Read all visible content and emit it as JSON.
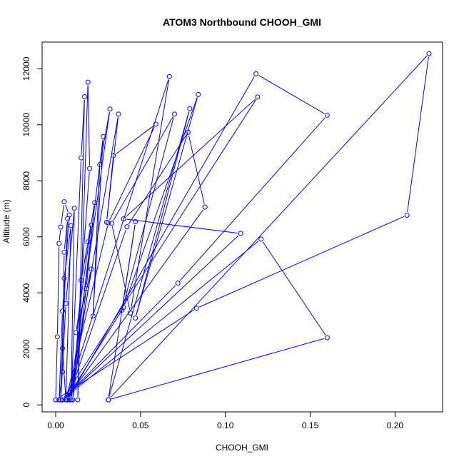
{
  "chart_data": {
    "type": "line",
    "title": "ATOM3 Northbound CHOOH_GMI",
    "xlabel": "CHOOH_GMI",
    "ylabel": "Altitude (m)",
    "xlim": [
      -0.008,
      0.228
    ],
    "ylim": [
      -250,
      12950
    ],
    "x_ticks": [
      0.0,
      0.05,
      0.1,
      0.15,
      0.2
    ],
    "x_tick_labels": [
      "0.00",
      "0.05",
      "0.10",
      "0.15",
      "0.20"
    ],
    "y_ticks": [
      0,
      2000,
      4000,
      6000,
      8000,
      10000,
      12000
    ],
    "y_tick_labels": [
      "0",
      "2000",
      "4000",
      "6000",
      "8000",
      "10000",
      "12000"
    ],
    "grid": false,
    "legend": "none",
    "color": "#0000ff",
    "series": [
      {
        "points": [
          [
            0.0,
            180
          ],
          [
            0.001,
            2430
          ],
          [
            0.002,
            5760
          ],
          [
            0.003,
            6350
          ],
          [
            0.005,
            7250
          ],
          [
            0.008,
            6780
          ],
          [
            0.004,
            3350
          ],
          [
            0.002,
            180
          ],
          [
            0.004,
            1180
          ],
          [
            0.005,
            5450
          ],
          [
            0.007,
            6650
          ],
          [
            0.004,
            2020
          ],
          [
            0.006,
            180
          ],
          [
            0.009,
            6400
          ],
          [
            0.005,
            4520
          ],
          [
            0.003,
            180
          ],
          [
            0.006,
            3620
          ],
          [
            0.011,
            7020
          ],
          [
            0.009,
            180
          ],
          [
            0.015,
            8820
          ],
          [
            0.017,
            11000
          ],
          [
            0.013,
            180
          ],
          [
            0.019,
            11520
          ],
          [
            0.02,
            8440
          ],
          [
            0.01,
            180
          ],
          [
            0.018,
            4150
          ],
          [
            0.023,
            7220
          ],
          [
            0.019,
            5820
          ],
          [
            0.015,
            4450
          ],
          [
            0.021,
            6420
          ],
          [
            0.012,
            2580
          ],
          [
            0.021,
            4850
          ],
          [
            0.009,
            180
          ],
          [
            0.028,
            9580
          ],
          [
            0.022,
            3170
          ],
          [
            0.026,
            8580
          ],
          [
            0.032,
            10560
          ],
          [
            0.008,
            180
          ],
          [
            0.037,
            10380
          ],
          [
            0.03,
            6520
          ],
          [
            0.034,
            8890
          ],
          [
            0.059,
            10020
          ],
          [
            0.031,
            6500
          ],
          [
            0.006,
            180
          ],
          [
            0.067,
            11720
          ],
          [
            0.044,
            3280
          ],
          [
            0.033,
            6480
          ],
          [
            0.07,
            10380
          ],
          [
            0.039,
            3380
          ],
          [
            0.047,
            6540
          ],
          [
            0.031,
            180
          ],
          [
            0.079,
            10570
          ],
          [
            0.047,
            3100
          ],
          [
            0.084,
            11080
          ],
          [
            0.04,
            3480
          ],
          [
            0.006,
            180
          ],
          [
            0.088,
            7060
          ],
          [
            0.078,
            9730
          ],
          [
            0.042,
            6360
          ],
          [
            0.007,
            180
          ],
          [
            0.118,
            11820
          ],
          [
            0.16,
            10340
          ],
          [
            0.072,
            4350
          ],
          [
            0.004,
            180
          ],
          [
            0.119,
            10990
          ],
          [
            0.04,
            6640
          ],
          [
            0.109,
            6120
          ],
          [
            0.004,
            180
          ],
          [
            0.121,
            5920
          ],
          [
            0.16,
            2400
          ],
          [
            0.031,
            180
          ],
          [
            0.22,
            12540
          ],
          [
            0.207,
            6770
          ],
          [
            0.083,
            3450
          ],
          [
            0.0,
            180
          ]
        ]
      }
    ]
  }
}
